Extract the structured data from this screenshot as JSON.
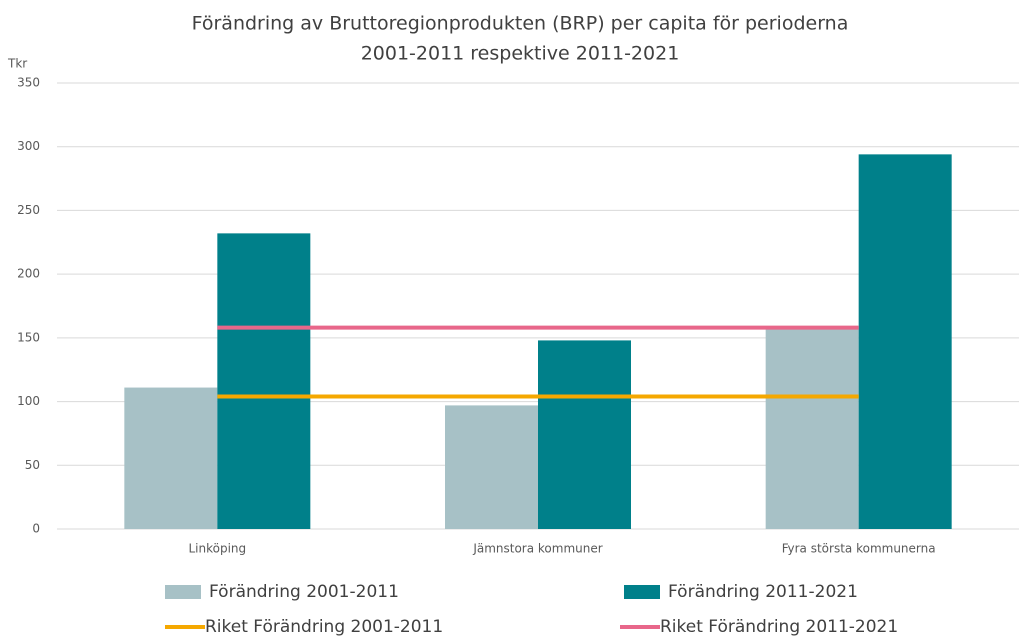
{
  "chart_data": {
    "type": "bar",
    "title": [
      "Förändring av Bruttoregionprodukten (BRP) per capita för perioderna",
      "2001-2011 respektive 2011-2021"
    ],
    "y_label": "Tkr",
    "categories": [
      "Linköping",
      "Jämnstora kommuner",
      "Fyra största kommunerna"
    ],
    "series": [
      {
        "name": "Förändring 2001-2011",
        "type": "bar",
        "color": "#a7c1c6",
        "values": [
          111,
          97,
          158
        ]
      },
      {
        "name": "Förändring 2011-2021",
        "type": "bar",
        "color": "#00808a",
        "values": [
          232,
          148,
          294
        ]
      },
      {
        "name": "Riket Förändring 2001-2011",
        "type": "line",
        "color": "#f5a800",
        "values": [
          104,
          104,
          104
        ]
      },
      {
        "name": "Riket Förändring 2011-2021",
        "type": "line",
        "color": "#e8678a",
        "values": [
          158,
          158,
          158
        ]
      }
    ],
    "ylim": [
      0,
      350
    ],
    "yticks": [
      0,
      50,
      100,
      150,
      200,
      250,
      300,
      350
    ],
    "grid": true
  }
}
